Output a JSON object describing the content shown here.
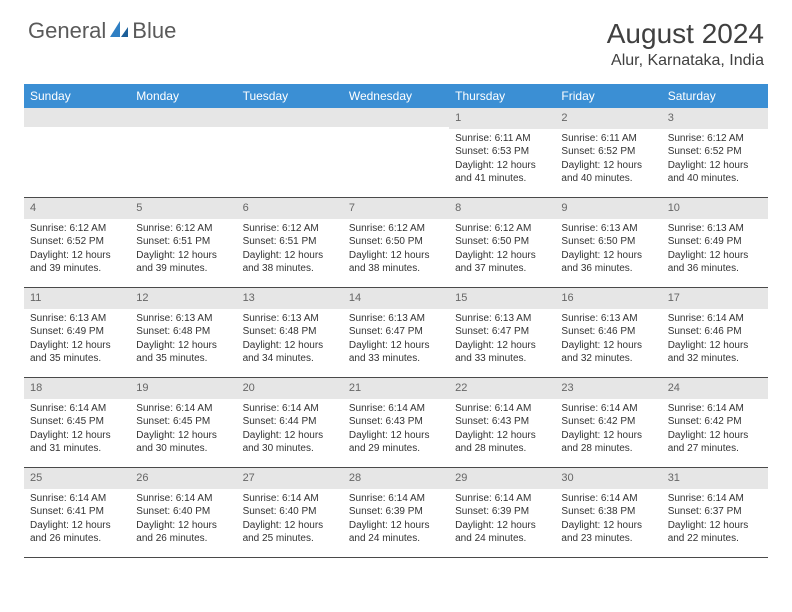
{
  "brand": {
    "text1": "General",
    "text2": "Blue"
  },
  "title": "August 2024",
  "location": "Alur, Karnataka, India",
  "colors": {
    "header_bg": "#3b8fd4",
    "daynum_bg": "#e6e6e6",
    "border": "#4a4a4a",
    "brand_blue": "#2f7fc3"
  },
  "dow": [
    "Sunday",
    "Monday",
    "Tuesday",
    "Wednesday",
    "Thursday",
    "Friday",
    "Saturday"
  ],
  "weeks": [
    [
      {
        "n": "",
        "sr": "",
        "ss": "",
        "d1": "",
        "d2": ""
      },
      {
        "n": "",
        "sr": "",
        "ss": "",
        "d1": "",
        "d2": ""
      },
      {
        "n": "",
        "sr": "",
        "ss": "",
        "d1": "",
        "d2": ""
      },
      {
        "n": "",
        "sr": "",
        "ss": "",
        "d1": "",
        "d2": ""
      },
      {
        "n": "1",
        "sr": "Sunrise: 6:11 AM",
        "ss": "Sunset: 6:53 PM",
        "d1": "Daylight: 12 hours",
        "d2": "and 41 minutes."
      },
      {
        "n": "2",
        "sr": "Sunrise: 6:11 AM",
        "ss": "Sunset: 6:52 PM",
        "d1": "Daylight: 12 hours",
        "d2": "and 40 minutes."
      },
      {
        "n": "3",
        "sr": "Sunrise: 6:12 AM",
        "ss": "Sunset: 6:52 PM",
        "d1": "Daylight: 12 hours",
        "d2": "and 40 minutes."
      }
    ],
    [
      {
        "n": "4",
        "sr": "Sunrise: 6:12 AM",
        "ss": "Sunset: 6:52 PM",
        "d1": "Daylight: 12 hours",
        "d2": "and 39 minutes."
      },
      {
        "n": "5",
        "sr": "Sunrise: 6:12 AM",
        "ss": "Sunset: 6:51 PM",
        "d1": "Daylight: 12 hours",
        "d2": "and 39 minutes."
      },
      {
        "n": "6",
        "sr": "Sunrise: 6:12 AM",
        "ss": "Sunset: 6:51 PM",
        "d1": "Daylight: 12 hours",
        "d2": "and 38 minutes."
      },
      {
        "n": "7",
        "sr": "Sunrise: 6:12 AM",
        "ss": "Sunset: 6:50 PM",
        "d1": "Daylight: 12 hours",
        "d2": "and 38 minutes."
      },
      {
        "n": "8",
        "sr": "Sunrise: 6:12 AM",
        "ss": "Sunset: 6:50 PM",
        "d1": "Daylight: 12 hours",
        "d2": "and 37 minutes."
      },
      {
        "n": "9",
        "sr": "Sunrise: 6:13 AM",
        "ss": "Sunset: 6:50 PM",
        "d1": "Daylight: 12 hours",
        "d2": "and 36 minutes."
      },
      {
        "n": "10",
        "sr": "Sunrise: 6:13 AM",
        "ss": "Sunset: 6:49 PM",
        "d1": "Daylight: 12 hours",
        "d2": "and 36 minutes."
      }
    ],
    [
      {
        "n": "11",
        "sr": "Sunrise: 6:13 AM",
        "ss": "Sunset: 6:49 PM",
        "d1": "Daylight: 12 hours",
        "d2": "and 35 minutes."
      },
      {
        "n": "12",
        "sr": "Sunrise: 6:13 AM",
        "ss": "Sunset: 6:48 PM",
        "d1": "Daylight: 12 hours",
        "d2": "and 35 minutes."
      },
      {
        "n": "13",
        "sr": "Sunrise: 6:13 AM",
        "ss": "Sunset: 6:48 PM",
        "d1": "Daylight: 12 hours",
        "d2": "and 34 minutes."
      },
      {
        "n": "14",
        "sr": "Sunrise: 6:13 AM",
        "ss": "Sunset: 6:47 PM",
        "d1": "Daylight: 12 hours",
        "d2": "and 33 minutes."
      },
      {
        "n": "15",
        "sr": "Sunrise: 6:13 AM",
        "ss": "Sunset: 6:47 PM",
        "d1": "Daylight: 12 hours",
        "d2": "and 33 minutes."
      },
      {
        "n": "16",
        "sr": "Sunrise: 6:13 AM",
        "ss": "Sunset: 6:46 PM",
        "d1": "Daylight: 12 hours",
        "d2": "and 32 minutes."
      },
      {
        "n": "17",
        "sr": "Sunrise: 6:14 AM",
        "ss": "Sunset: 6:46 PM",
        "d1": "Daylight: 12 hours",
        "d2": "and 32 minutes."
      }
    ],
    [
      {
        "n": "18",
        "sr": "Sunrise: 6:14 AM",
        "ss": "Sunset: 6:45 PM",
        "d1": "Daylight: 12 hours",
        "d2": "and 31 minutes."
      },
      {
        "n": "19",
        "sr": "Sunrise: 6:14 AM",
        "ss": "Sunset: 6:45 PM",
        "d1": "Daylight: 12 hours",
        "d2": "and 30 minutes."
      },
      {
        "n": "20",
        "sr": "Sunrise: 6:14 AM",
        "ss": "Sunset: 6:44 PM",
        "d1": "Daylight: 12 hours",
        "d2": "and 30 minutes."
      },
      {
        "n": "21",
        "sr": "Sunrise: 6:14 AM",
        "ss": "Sunset: 6:43 PM",
        "d1": "Daylight: 12 hours",
        "d2": "and 29 minutes."
      },
      {
        "n": "22",
        "sr": "Sunrise: 6:14 AM",
        "ss": "Sunset: 6:43 PM",
        "d1": "Daylight: 12 hours",
        "d2": "and 28 minutes."
      },
      {
        "n": "23",
        "sr": "Sunrise: 6:14 AM",
        "ss": "Sunset: 6:42 PM",
        "d1": "Daylight: 12 hours",
        "d2": "and 28 minutes."
      },
      {
        "n": "24",
        "sr": "Sunrise: 6:14 AM",
        "ss": "Sunset: 6:42 PM",
        "d1": "Daylight: 12 hours",
        "d2": "and 27 minutes."
      }
    ],
    [
      {
        "n": "25",
        "sr": "Sunrise: 6:14 AM",
        "ss": "Sunset: 6:41 PM",
        "d1": "Daylight: 12 hours",
        "d2": "and 26 minutes."
      },
      {
        "n": "26",
        "sr": "Sunrise: 6:14 AM",
        "ss": "Sunset: 6:40 PM",
        "d1": "Daylight: 12 hours",
        "d2": "and 26 minutes."
      },
      {
        "n": "27",
        "sr": "Sunrise: 6:14 AM",
        "ss": "Sunset: 6:40 PM",
        "d1": "Daylight: 12 hours",
        "d2": "and 25 minutes."
      },
      {
        "n": "28",
        "sr": "Sunrise: 6:14 AM",
        "ss": "Sunset: 6:39 PM",
        "d1": "Daylight: 12 hours",
        "d2": "and 24 minutes."
      },
      {
        "n": "29",
        "sr": "Sunrise: 6:14 AM",
        "ss": "Sunset: 6:39 PM",
        "d1": "Daylight: 12 hours",
        "d2": "and 24 minutes."
      },
      {
        "n": "30",
        "sr": "Sunrise: 6:14 AM",
        "ss": "Sunset: 6:38 PM",
        "d1": "Daylight: 12 hours",
        "d2": "and 23 minutes."
      },
      {
        "n": "31",
        "sr": "Sunrise: 6:14 AM",
        "ss": "Sunset: 6:37 PM",
        "d1": "Daylight: 12 hours",
        "d2": "and 22 minutes."
      }
    ]
  ]
}
